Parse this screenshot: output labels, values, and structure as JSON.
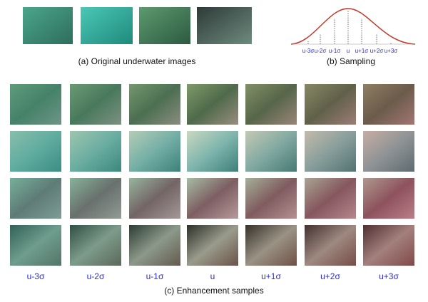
{
  "panel_a": {
    "caption": "(a) Original underwater images"
  },
  "panel_b": {
    "caption": "(b) Sampling",
    "labels": [
      "u-3σ",
      "u-2σ",
      "u-1σ",
      "u",
      "u+1σ",
      "u+2σ",
      "u+3σ"
    ]
  },
  "panel_c": {
    "caption": "(c) Enhancement samples",
    "labels": [
      "u-3σ",
      "u-2σ",
      "u-1σ",
      "u",
      "u+1σ",
      "u+2σ",
      "u+3σ"
    ]
  }
}
